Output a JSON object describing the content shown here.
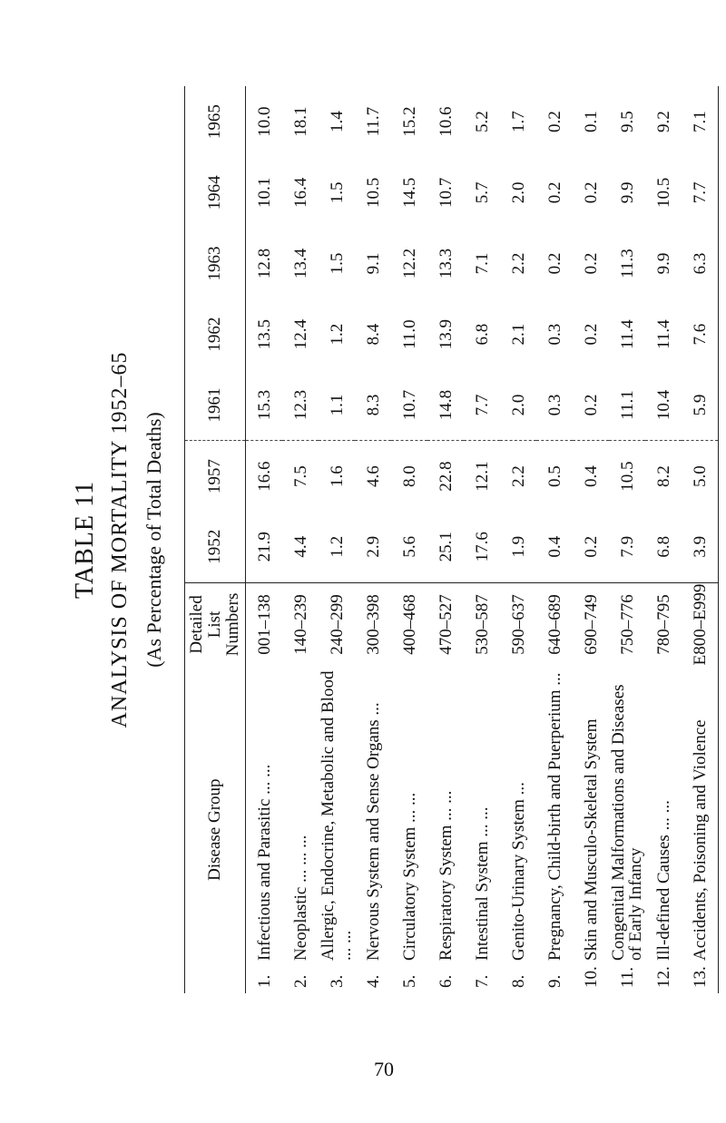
{
  "header": {
    "table_title": "TABLE 11",
    "title": "ANALYSIS OF MORTALITY 1952–65",
    "subtitle": "(As Percentage of Total Deaths)"
  },
  "table": {
    "columns": [
      "Disease Group",
      "Detailed List Numbers",
      "1952",
      "1957",
      "1961",
      "1962",
      "1963",
      "1964",
      "1965"
    ],
    "rows": [
      [
        "1.",
        "Infectious and Parasitic ... ...",
        "001–138",
        "21.9",
        "16.6",
        "15.3",
        "13.5",
        "12.8",
        "10.1",
        "10.0"
      ],
      [
        "2.",
        "Neoplastic ... ... ...",
        "140–239",
        "4.4",
        "7.5",
        "12.3",
        "12.4",
        "13.4",
        "16.4",
        "18.1"
      ],
      [
        "3.",
        "Allergic, Endocrine, Metabolic and Blood ... ...",
        "240–299",
        "1.2",
        "1.6",
        "1.1",
        "1.2",
        "1.5",
        "1.5",
        "1.4"
      ],
      [
        "4.",
        "Nervous System and Sense Organs ...",
        "300–398",
        "2.9",
        "4.6",
        "8.3",
        "8.4",
        "9.1",
        "10.5",
        "11.7"
      ],
      [
        "5.",
        "Circulatory System ... ...",
        "400–468",
        "5.6",
        "8.0",
        "10.7",
        "11.0",
        "12.2",
        "14.5",
        "15.2"
      ],
      [
        "6.",
        "Respiratory System ... ...",
        "470–527",
        "25.1",
        "22.8",
        "14.8",
        "13.9",
        "13.3",
        "10.7",
        "10.6"
      ],
      [
        "7.",
        "Intestinal System ... ...",
        "530–587",
        "17.6",
        "12.1",
        "7.7",
        "6.8",
        "7.1",
        "5.7",
        "5.2"
      ],
      [
        "8.",
        "Genito-Urinary System ...",
        "590–637",
        "1.9",
        "2.2",
        "2.0",
        "2.1",
        "2.2",
        "2.0",
        "1.7"
      ],
      [
        "9.",
        "Pregnancy, Child-birth and Puerperium ...",
        "640–689",
        "0.4",
        "0.5",
        "0.3",
        "0.3",
        "0.2",
        "0.2",
        "0.2"
      ],
      [
        "10.",
        "Skin and Musculo-Skeletal System",
        "690–749",
        "0.2",
        "0.4",
        "0.2",
        "0.2",
        "0.2",
        "0.2",
        "0.1"
      ],
      [
        "11.",
        "Congenital Malformations and Diseases of Early Infancy",
        "750–776",
        "7.9",
        "10.5",
        "11.1",
        "11.4",
        "11.3",
        "9.9",
        "9.5"
      ],
      [
        "12.",
        "Ill-defined Causes ... ...",
        "780–795",
        "6.8",
        "8.2",
        "10.4",
        "11.4",
        "9.9",
        "10.5",
        "9.2"
      ],
      [
        "13.",
        "Accidents, Poisoning and Violence",
        "E800–E999",
        "3.9",
        "5.0",
        "5.9",
        "7.6",
        "6.3",
        "7.7",
        "7.1"
      ]
    ]
  },
  "page_number": "70"
}
